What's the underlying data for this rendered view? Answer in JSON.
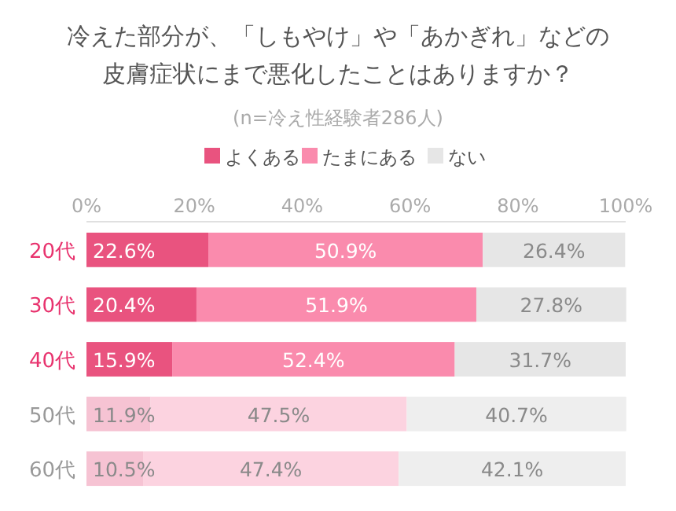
{
  "chart_data": {
    "type": "bar",
    "orientation": "horizontal",
    "stacked": true,
    "title": "冷えた部分が、「しもやけ」や「あかぎれ」などの皮膚症状にまで悪化したことはありますか？",
    "subtitle": "(n=冷え性経験者286人)",
    "categories": [
      "20代",
      "30代",
      "40代",
      "50代",
      "60代"
    ],
    "series": [
      {
        "name": "よくある",
        "color": "#e9537f",
        "colors": [
          "#e9537f",
          "#e9537f",
          "#e9537f",
          "#f6c3d3",
          "#f6c3d3"
        ],
        "values": [
          22.6,
          20.4,
          15.9,
          11.9,
          10.5
        ],
        "value_labels": [
          "22.6%",
          "20.4%",
          "15.9%",
          "11.9%",
          "10.5%"
        ]
      },
      {
        "name": "たまにある",
        "color": "#fa8bad",
        "colors": [
          "#fa8bad",
          "#fa8bad",
          "#fa8bad",
          "#fcd3e0",
          "#fcd3e0"
        ],
        "values": [
          50.9,
          51.9,
          52.4,
          47.5,
          47.4
        ],
        "value_labels": [
          "50.9%",
          "51.9%",
          "52.4%",
          "47.5%",
          "47.4%"
        ]
      },
      {
        "name": "ない",
        "color": "#e6e6e6",
        "colors": [
          "#e6e6e6",
          "#e6e6e6",
          "#e6e6e6",
          "#eeeeee",
          "#eeeeee"
        ],
        "values": [
          26.4,
          27.8,
          31.7,
          40.7,
          42.1
        ],
        "value_labels": [
          "26.4%",
          "27.8%",
          "31.7%",
          "40.7%",
          "42.1%"
        ]
      }
    ],
    "xlim": [
      0,
      100
    ],
    "xticks": [
      {
        "value": 0,
        "label": "0%"
      },
      {
        "value": 20,
        "label": "20%"
      },
      {
        "value": 40,
        "label": "40%"
      },
      {
        "value": 60,
        "label": "60%"
      },
      {
        "value": 80,
        "label": "80%"
      },
      {
        "value": 100,
        "label": "100%"
      }
    ],
    "legend": "top"
  }
}
